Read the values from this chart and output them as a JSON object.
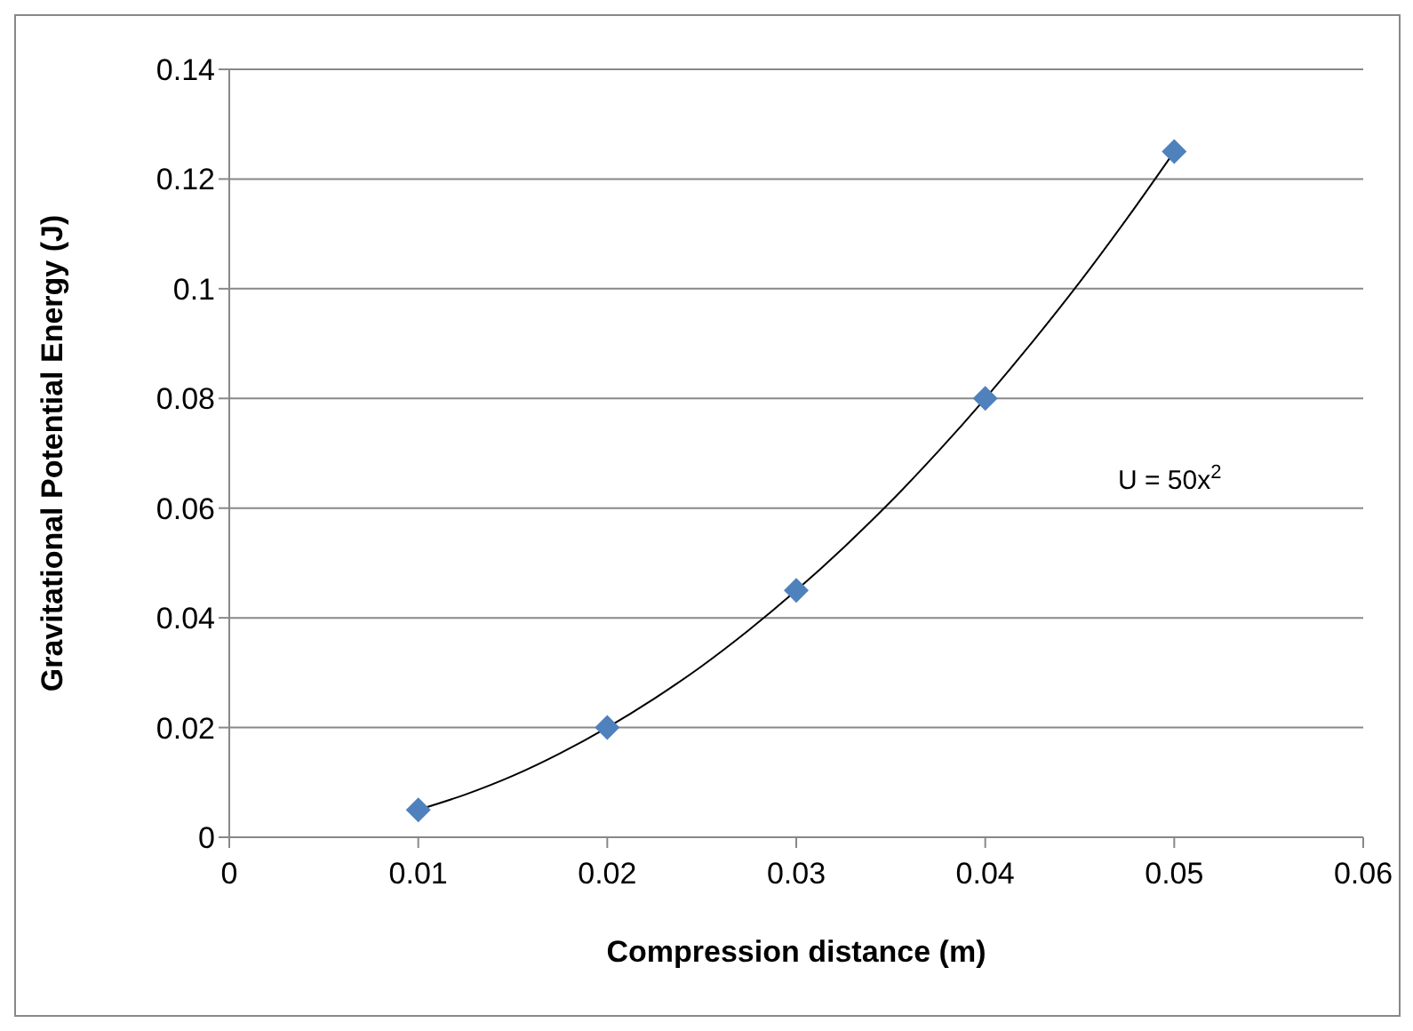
{
  "chart_data": {
    "type": "scatter",
    "xlabel": "Compression distance (m)",
    "ylabel": "Gravitational Potential Energy (J)",
    "annotations": [
      "U = 50x$^{2}$"
    ],
    "xlim": [
      0,
      0.06
    ],
    "xticks": [
      0,
      0.01,
      0.02,
      0.03,
      0.04,
      0.05,
      0.06
    ],
    "ylim": [
      0,
      0.14
    ],
    "yticks": [
      0,
      0.02,
      0.04,
      0.06,
      0.08,
      0.1,
      0.12,
      0.14
    ],
    "grid": "y",
    "legend": false,
    "series": [
      {
        "color": "#4f81bd",
        "marker": "diamond",
        "x": [
          0.01,
          0.02,
          0.03,
          0.04,
          0.05
        ],
        "values": [
          0.005,
          0.02,
          0.045,
          0.08,
          0.125
        ]
      },
      {
        "type": "line",
        "color": "#000000",
        "marker": "none",
        "x": [
          0.01,
          0.0125,
          0.015,
          0.0175,
          0.02,
          0.0225,
          0.025,
          0.0275,
          0.03,
          0.0325,
          0.035,
          0.0375,
          0.04,
          0.0425,
          0.045,
          0.0475,
          0.05
        ],
        "values": [
          0.005,
          0.0078,
          0.0112,
          0.0153,
          0.02,
          0.0253,
          0.0312,
          0.0378,
          0.045,
          0.0528,
          0.0612,
          0.0703,
          0.08,
          0.0903,
          0.1012,
          0.1128,
          0.125
        ]
      }
    ]
  }
}
